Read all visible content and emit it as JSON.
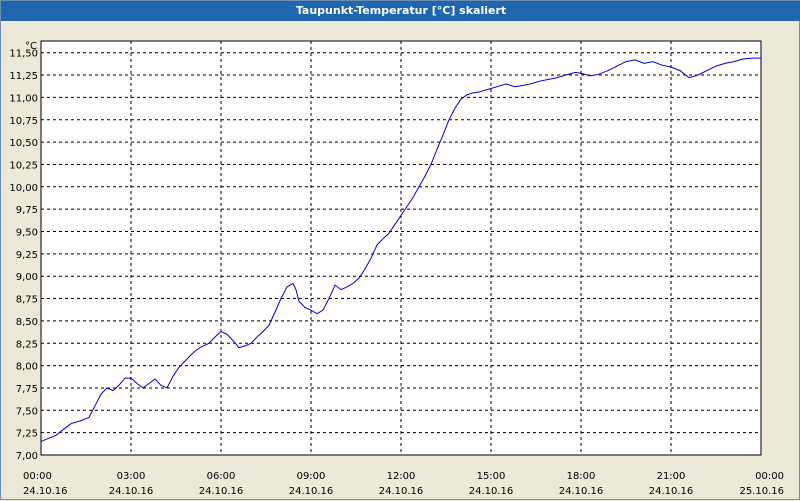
{
  "window": {
    "title": "Taupunkt-Temperatur [°C] skaliert"
  },
  "chart_data": {
    "type": "line",
    "title": "Taupunkt-Temperatur [°C] skaliert",
    "ylabel": "°C",
    "xlabel": "",
    "ylim": [
      7.0,
      11.6
    ],
    "xlim": [
      0,
      24
    ],
    "grid": true,
    "line_color": "#0000cc",
    "y_ticks": [
      "7,00",
      "7,25",
      "7,50",
      "7,75",
      "8,00",
      "8,25",
      "8,50",
      "8,75",
      "9,00",
      "9,25",
      "9,50",
      "9,75",
      "10,00",
      "10,25",
      "10,50",
      "10,75",
      "11,00",
      "11,25",
      "11,50"
    ],
    "x_ticks": [
      {
        "time": "00:00",
        "date": "24.10.16"
      },
      {
        "time": "03:00",
        "date": "24.10.16"
      },
      {
        "time": "06:00",
        "date": "24.10.16"
      },
      {
        "time": "09:00",
        "date": "24.10.16"
      },
      {
        "time": "12:00",
        "date": "24.10.16"
      },
      {
        "time": "15:00",
        "date": "24.10.16"
      },
      {
        "time": "18:00",
        "date": "24.10.16"
      },
      {
        "time": "21:00",
        "date": "24.10.16"
      },
      {
        "time": "00:00",
        "date": "25.10.16"
      }
    ],
    "series": [
      {
        "x": [
          0,
          0.2,
          0.5,
          0.8,
          1.0,
          1.3,
          1.6,
          1.8,
          2.0,
          2.2,
          2.4,
          2.6,
          2.8,
          3.0,
          3.2,
          3.4,
          3.6,
          3.8,
          4.0,
          4.2,
          4.4,
          4.6,
          4.8,
          5.0,
          5.2,
          5.4,
          5.6,
          5.8,
          6.0,
          6.2,
          6.4,
          6.6,
          6.8,
          7.0,
          7.2,
          7.4,
          7.6,
          7.8,
          8.0,
          8.2,
          8.4,
          8.5,
          8.6,
          8.8,
          9.0,
          9.2,
          9.4,
          9.6,
          9.8,
          10.0,
          10.2,
          10.4,
          10.6,
          10.8,
          11.0,
          11.2,
          11.4,
          11.6,
          11.8,
          12.0,
          12.2,
          12.4,
          12.6,
          12.8,
          13.0,
          13.2,
          13.4,
          13.6,
          13.8,
          14.0,
          14.2,
          14.4,
          14.6,
          14.8,
          15.0,
          15.2,
          15.5,
          15.8,
          16.0,
          16.3,
          16.6,
          16.9,
          17.2,
          17.5,
          17.8,
          18.0,
          18.3,
          18.6,
          18.9,
          19.2,
          19.5,
          19.8,
          20.1,
          20.4,
          20.7,
          21.0,
          21.3,
          21.6,
          21.9,
          22.2,
          22.5,
          22.8,
          23.1,
          23.4,
          23.7,
          24.0
        ],
        "y": [
          7.15,
          7.18,
          7.22,
          7.3,
          7.35,
          7.38,
          7.42,
          7.55,
          7.68,
          7.75,
          7.72,
          7.78,
          7.86,
          7.86,
          7.8,
          7.75,
          7.8,
          7.85,
          7.78,
          7.75,
          7.88,
          7.98,
          8.05,
          8.12,
          8.18,
          8.22,
          8.25,
          8.32,
          8.38,
          8.35,
          8.28,
          8.2,
          8.22,
          8.25,
          8.32,
          8.38,
          8.45,
          8.6,
          8.75,
          8.88,
          8.92,
          8.85,
          8.72,
          8.65,
          8.62,
          8.58,
          8.62,
          8.75,
          8.9,
          8.85,
          8.88,
          8.92,
          8.98,
          9.08,
          9.2,
          9.35,
          9.42,
          9.48,
          9.58,
          9.68,
          9.78,
          9.88,
          10.0,
          10.12,
          10.25,
          10.42,
          10.58,
          10.75,
          10.88,
          10.98,
          11.03,
          11.05,
          11.06,
          11.08,
          11.1,
          11.12,
          11.15,
          11.12,
          11.13,
          11.15,
          11.18,
          11.2,
          11.22,
          11.25,
          11.28,
          11.27,
          11.24,
          11.26,
          11.3,
          11.35,
          11.4,
          11.42,
          11.38,
          11.4,
          11.36,
          11.34,
          11.3,
          11.22,
          11.25,
          11.3,
          11.35,
          11.38,
          11.4,
          11.43,
          11.44,
          11.44
        ]
      }
    ]
  }
}
